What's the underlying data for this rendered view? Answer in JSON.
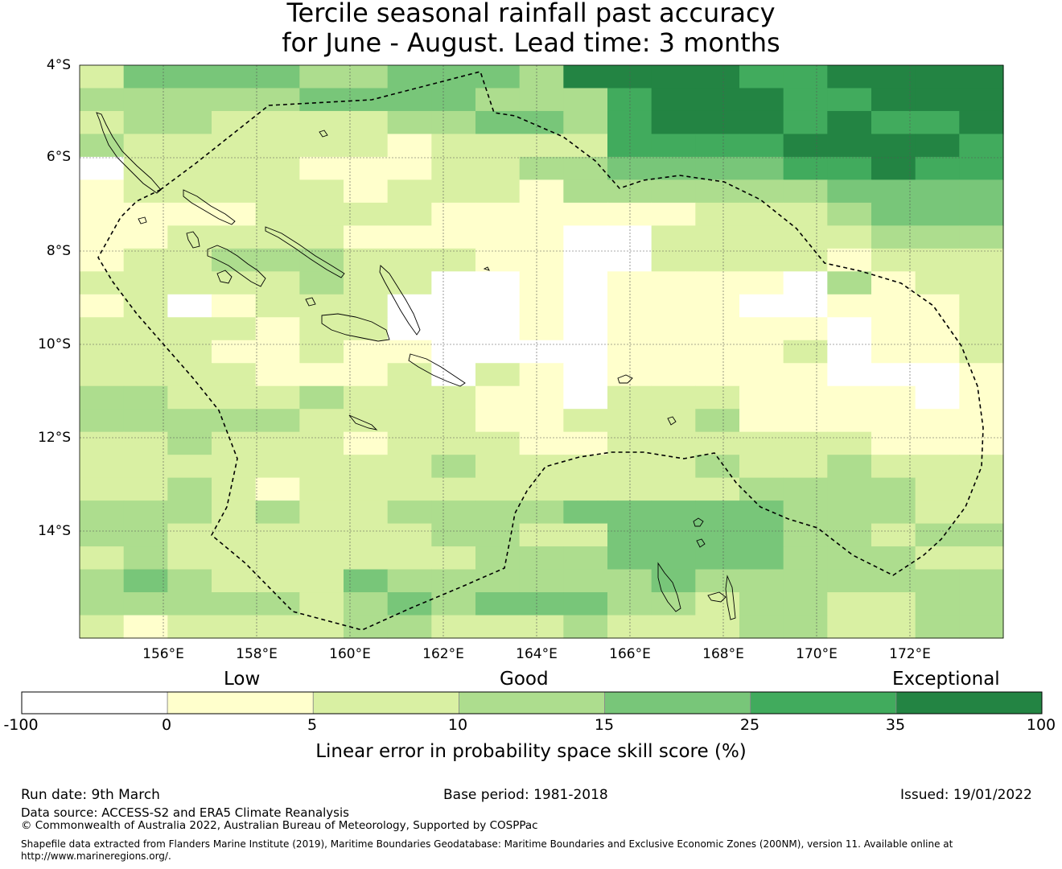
{
  "title": {
    "line1": "Tercile seasonal rainfall past accuracy",
    "line2": "for June - August. Lead time: 3 months"
  },
  "map": {
    "lat_labels": [
      "4°S",
      "6°S",
      "8°S",
      "10°S",
      "12°S",
      "14°S"
    ],
    "lon_labels": [
      "156°E",
      "158°E",
      "160°E",
      "162°E",
      "164°E",
      "166°E",
      "168°E",
      "170°E",
      "172°E"
    ],
    "lat_range": [
      "4°S",
      "16.3°S"
    ],
    "lon_range": [
      "154.2°E",
      "174°E"
    ],
    "grid_rows": [
      "244443344436666556666",
      "333334444333566655666",
      "233222233443566656556",
      "322222212222555566665",
      "022221112233444455655",
      "122222122213333334444",
      "111122221111112223444",
      "112222111110022222333",
      "122333222110022221222",
      "222223220010111103122",
      "120122200010111001112",
      "222212200010111110112",
      "222112110000111120112",
      "222211120210111110001",
      "332223222110222111101",
      "333332222112223111111",
      "223222122211222222111",
      "222222223222223223222",
      "223212222222222333322",
      "333232233334444433322",
      "332222223322444433233",
      "232222222333444433322",
      "343222433333343333333",
      "333332343444332332233",
      "212222332223222332233"
    ],
    "colors": {
      "c0": "#ffffff",
      "c1": "#ffffcc",
      "c2": "#d9f0a3",
      "c3": "#addd8e",
      "c4": "#78c679",
      "c5": "#41ab5d",
      "c6": "#238443"
    }
  },
  "legend": {
    "categories": [
      "Low",
      "Good",
      "Exceptional"
    ],
    "ticks": [
      "-100",
      "0",
      "5",
      "10",
      "15",
      "25",
      "35",
      "100"
    ],
    "colors": [
      "#ffffff",
      "#ffffcc",
      "#d9f0a3",
      "#addd8e",
      "#78c679",
      "#41ab5d",
      "#238443"
    ],
    "label": "Linear error in probability space skill score (%)"
  },
  "footer": {
    "run_date": "Run date: 9th March",
    "base_period": "Base period: 1981-2018",
    "issued": "Issued: 19/01/2022",
    "data_source": "Data source: ACCESS-S2 and ERA5 Climate Reanalysis",
    "copyright": "© Commonwealth of Australia 2022, Australian Bureau of Meteorology, Supported by COSPPac",
    "shapefile_line1": "Shapefile data extracted from Flanders Marine Institute (2019), Maritime Boundaries Geodatabase: Maritime Boundaries and Exclusive Economic Zones (200NM), version 11. Available online at",
    "shapefile_line2": "http://www.marineregions.org/."
  }
}
